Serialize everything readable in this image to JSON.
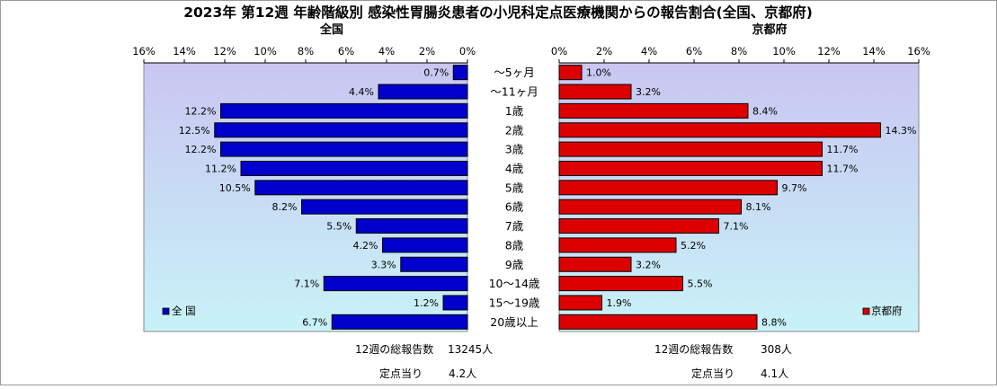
{
  "title": "2023年 第12週 年齢階級別 感染性胃腸炎患者の小児科定点医療機関からの報告割合(全国、京都府)",
  "colors": {
    "national_bar": "#0000cc",
    "kyoto_bar": "#dd0000",
    "plot_bg_top": "#c9c6f2",
    "plot_bg_bottom": "#c8f2f7",
    "bar_border": "#000000"
  },
  "chart_data": [
    {
      "type": "bar",
      "orientation": "horizontal",
      "direction": "right-to-left",
      "title": "全国",
      "legend": {
        "label": "全 国",
        "placement": "bottom-left"
      },
      "xlim": [
        0,
        16
      ],
      "ticks": [
        "16%",
        "14%",
        "12%",
        "10%",
        "8%",
        "6%",
        "4%",
        "2%",
        "0%"
      ],
      "tick_values": [
        16,
        14,
        12,
        10,
        8,
        6,
        4,
        2,
        0
      ],
      "grid": false,
      "categories": [
        "～5ヶ月",
        "～11ヶ月",
        "1歳",
        "2歳",
        "3歳",
        "4歳",
        "5歳",
        "6歳",
        "7歳",
        "8歳",
        "9歳",
        "10～14歳",
        "15～19歳",
        "20歳以上"
      ],
      "values": [
        0.7,
        4.4,
        12.2,
        12.5,
        12.2,
        11.2,
        10.5,
        8.2,
        5.5,
        4.2,
        3.3,
        7.1,
        1.2,
        6.7
      ],
      "labels": [
        "0.7%",
        "4.4%",
        "12.2%",
        "12.5%",
        "12.2%",
        "11.2%",
        "10.5%",
        "8.2%",
        "5.5%",
        "4.2%",
        "3.3%",
        "7.1%",
        "1.2%",
        "6.7%"
      ]
    },
    {
      "type": "bar",
      "orientation": "horizontal",
      "direction": "left-to-right",
      "title": "京都府",
      "legend": {
        "label": "京都府",
        "placement": "bottom-right"
      },
      "xlim": [
        0,
        16
      ],
      "ticks": [
        "0%",
        "2%",
        "4%",
        "6%",
        "8%",
        "10%",
        "12%",
        "14%",
        "16%"
      ],
      "tick_values": [
        0,
        2,
        4,
        6,
        8,
        10,
        12,
        14,
        16
      ],
      "grid": false,
      "categories": [
        "～5ヶ月",
        "～11ヶ月",
        "1歳",
        "2歳",
        "3歳",
        "4歳",
        "5歳",
        "6歳",
        "7歳",
        "8歳",
        "9歳",
        "10～14歳",
        "15～19歳",
        "20歳以上"
      ],
      "values": [
        1.0,
        3.2,
        8.4,
        14.3,
        11.7,
        11.7,
        9.7,
        8.1,
        7.1,
        5.2,
        3.2,
        5.5,
        1.9,
        8.8
      ],
      "labels": [
        "1.0%",
        "3.2%",
        "8.4%",
        "14.3%",
        "11.7%",
        "11.7%",
        "9.7%",
        "8.1%",
        "7.1%",
        "5.2%",
        "3.2%",
        "5.5%",
        "1.9%",
        "8.8%"
      ]
    }
  ],
  "footer": {
    "national": {
      "total_label": "12週の総報告数",
      "total_value": "13245人",
      "per_label": "定点当り",
      "per_value": "4.2人"
    },
    "kyoto": {
      "total_label": "12週の総報告数",
      "total_value": "308人",
      "per_label": "定点当り",
      "per_value": "4.1人"
    }
  }
}
